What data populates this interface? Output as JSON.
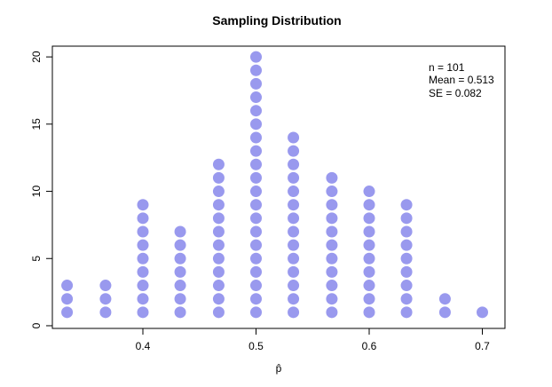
{
  "chart_data": {
    "type": "scatter",
    "title": "Sampling Distribution",
    "xlabel": "p̂",
    "ylabel": "",
    "xlim": [
      0.32,
      0.72
    ],
    "ylim": [
      -0.2,
      20.8
    ],
    "xticks": [
      0.4,
      0.5,
      0.6,
      0.7
    ],
    "xtick_labels": [
      "0.4",
      "0.5",
      "0.6",
      "0.7"
    ],
    "yticks": [
      0,
      5,
      10,
      15,
      20
    ],
    "ytick_labels": [
      "0",
      "5",
      "10",
      "15",
      "20"
    ],
    "grid": false,
    "point_color": "#9999ee",
    "stacks": [
      {
        "x": 0.333,
        "count": 3
      },
      {
        "x": 0.367,
        "count": 3
      },
      {
        "x": 0.4,
        "count": 9
      },
      {
        "x": 0.433,
        "count": 7
      },
      {
        "x": 0.467,
        "count": 12
      },
      {
        "x": 0.5,
        "count": 20
      },
      {
        "x": 0.533,
        "count": 14
      },
      {
        "x": 0.567,
        "count": 11
      },
      {
        "x": 0.6,
        "count": 10
      },
      {
        "x": 0.633,
        "count": 9
      },
      {
        "x": 0.667,
        "count": 2
      },
      {
        "x": 0.7,
        "count": 1
      }
    ],
    "annotations": {
      "n_label": "n = ",
      "n_value": "101",
      "mean_label": "Mean = ",
      "mean_value": "0.513",
      "se_label": "SE = ",
      "se_value": "0.082"
    }
  }
}
